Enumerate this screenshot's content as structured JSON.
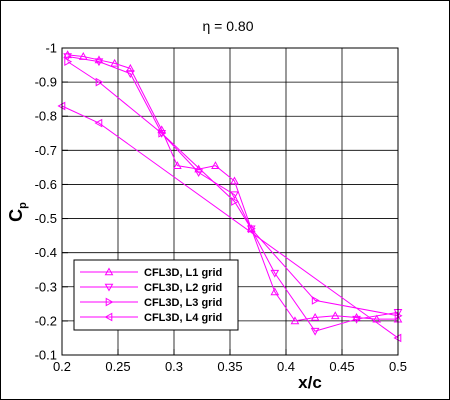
{
  "chart_data": {
    "type": "line",
    "title": "η = 0.80",
    "xlabel": "x/c",
    "ylabel": {
      "main": "C",
      "sub": "p"
    },
    "xlim": [
      0.2,
      0.5
    ],
    "ylim": [
      -0.1,
      -1.0
    ],
    "y_axis_inverted": true,
    "xticks": [
      0.2,
      0.25,
      0.3,
      0.35,
      0.4,
      0.45,
      0.5
    ],
    "xtick_labels": [
      "0.2",
      "0.25",
      "0.3",
      "0.35",
      "0.4",
      "0.45",
      "0.5"
    ],
    "yticks": [
      -1,
      -0.9,
      -0.8,
      -0.7,
      -0.6,
      -0.5,
      -0.4,
      -0.3,
      -0.2,
      -0.1
    ],
    "ytick_labels": [
      "-1",
      "-0.9",
      "-0.8",
      "-0.7",
      "-0.6",
      "-0.5",
      "-0.4",
      "-0.3",
      "-0.2",
      "-0.1"
    ],
    "grid": true,
    "legend_position": "bottom-left",
    "line_color": "#ff00ff",
    "series": [
      {
        "name": "CFL3D, L1 grid",
        "marker": "triangle-up",
        "x": [
          0.205,
          0.219,
          0.233,
          0.247,
          0.261,
          0.289,
          0.303,
          0.322,
          0.337,
          0.354,
          0.369,
          0.39,
          0.408,
          0.426,
          0.444,
          0.463,
          0.481,
          0.5
        ],
        "y": [
          -0.98,
          -0.975,
          -0.965,
          -0.955,
          -0.94,
          -0.76,
          -0.655,
          -0.645,
          -0.655,
          -0.61,
          -0.47,
          -0.285,
          -0.2,
          -0.21,
          -0.215,
          -0.21,
          -0.205,
          -0.205
        ]
      },
      {
        "name": "CFL3D, L2 grid",
        "marker": "triangle-down",
        "x": [
          0.205,
          0.233,
          0.261,
          0.289,
          0.322,
          0.354,
          0.369,
          0.39,
          0.426,
          0.463,
          0.5
        ],
        "y": [
          -0.975,
          -0.96,
          -0.925,
          -0.75,
          -0.635,
          -0.57,
          -0.47,
          -0.34,
          -0.17,
          -0.205,
          -0.225
        ]
      },
      {
        "name": "CFL3D, L3 grid",
        "marker": "triangle-right",
        "x": [
          0.205,
          0.233,
          0.289,
          0.354,
          0.369,
          0.426,
          0.5
        ],
        "y": [
          -0.96,
          -0.9,
          -0.75,
          -0.55,
          -0.47,
          -0.26,
          -0.215
        ]
      },
      {
        "name": "CFL3D, L4 grid",
        "marker": "triangle-left",
        "x": [
          0.2,
          0.233,
          0.5
        ],
        "y": [
          -0.83,
          -0.78,
          -0.15
        ]
      }
    ]
  }
}
